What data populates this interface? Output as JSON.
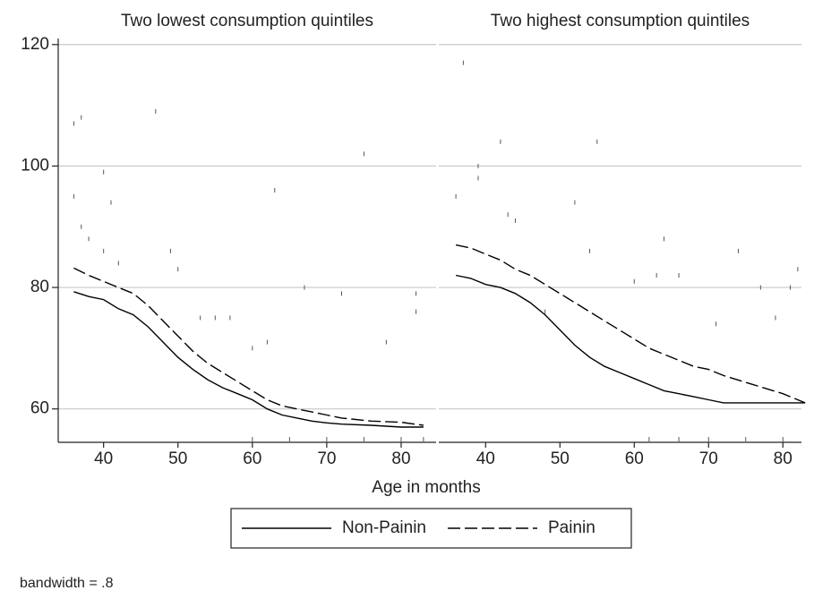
{
  "chart_data": [
    {
      "type": "line",
      "title": "Two lowest consumption quintiles",
      "x": [
        36,
        38,
        40,
        42,
        44,
        46,
        48,
        50,
        52,
        54,
        56,
        58,
        60,
        62,
        64,
        66,
        68,
        70,
        72,
        76,
        80,
        83
      ],
      "series": [
        {
          "name": "Non-Painin",
          "color": "#000000",
          "dash": "solid",
          "values": [
            79.3,
            78.5,
            78,
            76.5,
            75.5,
            73.5,
            71,
            68.5,
            66.5,
            64.8,
            63.5,
            62.5,
            61.5,
            60,
            59,
            58.5,
            58,
            57.7,
            57.5,
            57.3,
            57,
            57
          ]
        },
        {
          "name": "Painin",
          "color": "#000000",
          "dash": "dashed",
          "values": [
            83.2,
            82,
            81,
            80,
            79,
            77,
            74.5,
            72,
            69.5,
            67.5,
            66,
            64.5,
            63,
            61.5,
            60.5,
            60,
            59.5,
            59,
            58.5,
            58,
            57.8,
            57.3
          ]
        }
      ],
      "points": {
        "x": [
          36,
          37,
          36,
          37,
          38,
          40,
          41,
          40,
          42,
          47,
          49,
          50,
          53,
          55,
          57,
          60,
          63,
          62,
          67,
          75,
          72,
          78,
          82,
          82,
          60,
          65,
          70,
          75,
          80,
          83
        ],
        "values": [
          107,
          108,
          95,
          90,
          88,
          99,
          94,
          86,
          84,
          109,
          86,
          83,
          75,
          75,
          75,
          70,
          96,
          71,
          80,
          102,
          79,
          71,
          79,
          76,
          55,
          55,
          55,
          55,
          55,
          55
        ]
      },
      "xlim": [
        33.9,
        84.7
      ],
      "xticks": [
        40,
        50,
        60,
        70,
        80
      ],
      "ylim": [
        54.5,
        121
      ],
      "yticks": [
        60,
        80,
        100,
        120
      ],
      "grid": true
    },
    {
      "type": "line",
      "title": "Two highest consumption quintiles",
      "x": [
        36,
        38,
        40,
        42,
        44,
        46,
        48,
        50,
        52,
        54,
        56,
        58,
        60,
        62,
        64,
        66,
        68,
        70,
        72,
        76,
        80,
        83
      ],
      "series": [
        {
          "name": "Non-Painin",
          "color": "#000000",
          "dash": "solid",
          "values": [
            82,
            81.5,
            80.5,
            80,
            79,
            77.5,
            75.5,
            73,
            70.5,
            68.5,
            67,
            66,
            65,
            64,
            63,
            62.5,
            62,
            61.5,
            61,
            61,
            61,
            61
          ]
        },
        {
          "name": "Painin",
          "color": "#000000",
          "dash": "dashed",
          "values": [
            87,
            86.5,
            85.5,
            84.5,
            83,
            82,
            80.5,
            79,
            77.5,
            76,
            74.5,
            73,
            71.5,
            70,
            69,
            68,
            67,
            66.5,
            65.5,
            64,
            62.5,
            61
          ]
        }
      ],
      "points": {
        "x": [
          37,
          36,
          39,
          39,
          42,
          43,
          44,
          52,
          55,
          60,
          63,
          64,
          66,
          71,
          74,
          77,
          79,
          81,
          82,
          62,
          66,
          70,
          75,
          80,
          54,
          48
        ],
        "values": [
          117,
          95,
          100,
          98,
          104,
          92,
          91,
          94,
          104,
          81,
          82,
          88,
          82,
          74,
          86,
          80,
          75,
          80,
          83,
          55,
          55,
          55,
          55,
          55,
          86,
          76
        ]
      },
      "xlim": [
        33.7,
        82.5
      ],
      "xticks": [
        40,
        50,
        60,
        70,
        80
      ],
      "ylim": [
        54.5,
        121
      ],
      "grid": true
    }
  ],
  "x_label": "Age in months",
  "note": "bandwidth = .8"
}
